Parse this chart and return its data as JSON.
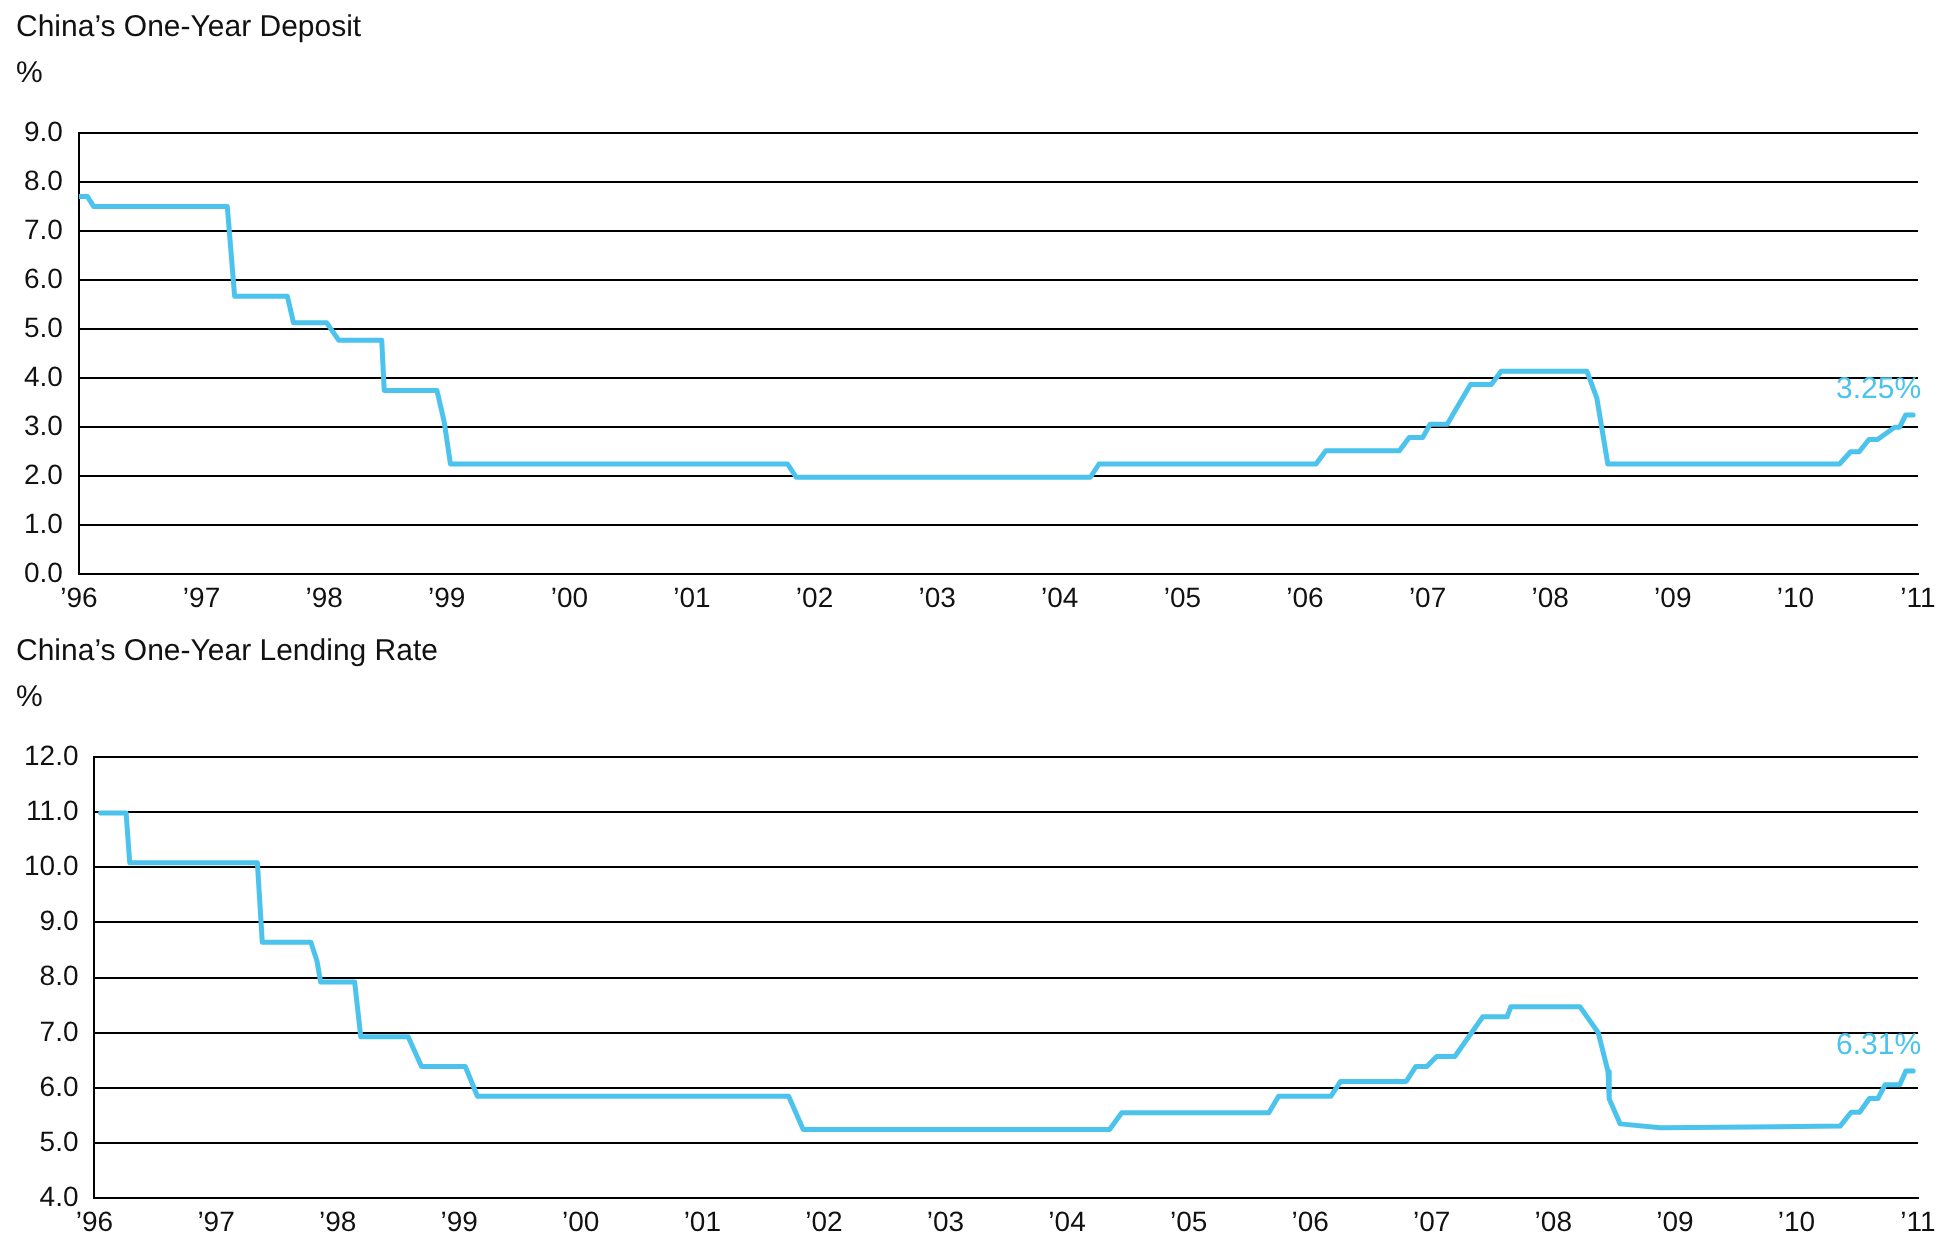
{
  "chart_data": [
    {
      "type": "line",
      "title": "China’s One-Year Deposit",
      "ylabel": "%",
      "color": "#4cc3ec",
      "x": [
        1996.0,
        1996.07,
        1996.12,
        1997.21,
        1997.27,
        1997.7,
        1997.75,
        1998.02,
        1998.12,
        1998.47,
        1998.49,
        1998.92,
        1998.98,
        1999.03,
        2001.78,
        2001.85,
        2004.25,
        2004.32,
        2006.09,
        2006.17,
        2006.77,
        2006.85,
        2006.96,
        2007.02,
        2007.16,
        2007.35,
        2007.52,
        2007.6,
        2008.3,
        2008.38,
        2008.47,
        2010.36,
        2010.45,
        2010.52,
        2010.6,
        2010.67,
        2010.81,
        2010.85,
        2010.9,
        2010.96
      ],
      "values": [
        7.7,
        7.7,
        7.5,
        7.5,
        5.67,
        5.67,
        5.13,
        5.13,
        4.77,
        4.77,
        3.75,
        3.75,
        3.1,
        2.25,
        2.25,
        1.98,
        1.98,
        2.25,
        2.25,
        2.52,
        2.52,
        2.79,
        2.79,
        3.06,
        3.06,
        3.87,
        3.87,
        4.14,
        4.14,
        3.6,
        2.25,
        2.25,
        2.5,
        2.5,
        2.75,
        2.75,
        3.0,
        3.0,
        3.25,
        3.25
      ],
      "xlim": [
        1996,
        2011
      ],
      "xticks": [
        {
          "value": 1996,
          "label": "’96"
        },
        {
          "value": 1997,
          "label": "’97"
        },
        {
          "value": 1998,
          "label": "’98"
        },
        {
          "value": 1999,
          "label": "’99"
        },
        {
          "value": 2000,
          "label": "’00"
        },
        {
          "value": 2001,
          "label": "’01"
        },
        {
          "value": 2002,
          "label": "’02"
        },
        {
          "value": 2003,
          "label": "’03"
        },
        {
          "value": 2004,
          "label": "’04"
        },
        {
          "value": 2005,
          "label": "’05"
        },
        {
          "value": 2006,
          "label": "’06"
        },
        {
          "value": 2007,
          "label": "’07"
        },
        {
          "value": 2008,
          "label": "’08"
        },
        {
          "value": 2009,
          "label": "’09"
        },
        {
          "value": 2010,
          "label": "’10"
        },
        {
          "value": 2011,
          "label": "’11"
        }
      ],
      "ylim": [
        0,
        9
      ],
      "yticks": [
        {
          "value": 0,
          "label": "0.0"
        },
        {
          "value": 1,
          "label": "1.0"
        },
        {
          "value": 2,
          "label": "2.0"
        },
        {
          "value": 3,
          "label": "3.0"
        },
        {
          "value": 4,
          "label": "4.0"
        },
        {
          "value": 5,
          "label": "5.0"
        },
        {
          "value": 6,
          "label": "6.0"
        },
        {
          "value": 7,
          "label": "7.0"
        },
        {
          "value": 8,
          "label": "8.0"
        },
        {
          "value": 9,
          "label": "9.0"
        }
      ],
      "annotations": [
        {
          "text": "3.25%",
          "x": 2010.96,
          "y": 3.25
        }
      ],
      "grid": "y",
      "legend": false,
      "marker": "none",
      "line_style": "solid"
    },
    {
      "type": "line",
      "title": "China’s One-Year Lending Rate",
      "ylabel": "%",
      "color": "#4cc3ec",
      "x": [
        1996.05,
        1996.26,
        1996.29,
        1997.34,
        1997.38,
        1997.78,
        1997.83,
        1997.86,
        1998.14,
        1998.19,
        1998.58,
        1998.69,
        1999.05,
        1999.15,
        2001.71,
        2001.83,
        2004.35,
        2004.45,
        2005.66,
        2005.74,
        2006.17,
        2006.25,
        2006.79,
        2006.87,
        2006.96,
        2007.04,
        2007.19,
        2007.42,
        2007.62,
        2007.65,
        2008.22,
        2008.37,
        2008.45,
        2008.46,
        2008.55,
        2008.88,
        2010.36,
        2010.45,
        2010.52,
        2010.6,
        2010.67,
        2010.73,
        2010.85,
        2010.9,
        2010.96
      ],
      "values": [
        10.98,
        10.98,
        10.08,
        10.08,
        8.64,
        8.64,
        8.3,
        7.92,
        7.92,
        6.93,
        6.93,
        6.39,
        6.39,
        5.85,
        5.85,
        5.25,
        5.25,
        5.55,
        5.55,
        5.85,
        5.85,
        6.12,
        6.12,
        6.39,
        6.39,
        6.57,
        6.57,
        7.29,
        7.29,
        7.47,
        7.47,
        7.0,
        6.3,
        5.8,
        5.35,
        5.28,
        5.31,
        5.56,
        5.56,
        5.81,
        5.81,
        6.06,
        6.06,
        6.31,
        6.31
      ],
      "xlim": [
        1996,
        2011
      ],
      "xticks": [
        {
          "value": 1996,
          "label": "’96"
        },
        {
          "value": 1997,
          "label": "’97"
        },
        {
          "value": 1998,
          "label": "’98"
        },
        {
          "value": 1999,
          "label": "’99"
        },
        {
          "value": 2000,
          "label": "’00"
        },
        {
          "value": 2001,
          "label": "’01"
        },
        {
          "value": 2002,
          "label": "’02"
        },
        {
          "value": 2003,
          "label": "’03"
        },
        {
          "value": 2004,
          "label": "’04"
        },
        {
          "value": 2005,
          "label": "’05"
        },
        {
          "value": 2006,
          "label": "’06"
        },
        {
          "value": 2007,
          "label": "’07"
        },
        {
          "value": 2008,
          "label": "’08"
        },
        {
          "value": 2009,
          "label": "’09"
        },
        {
          "value": 2010,
          "label": "’10"
        },
        {
          "value": 2011,
          "label": "’11"
        }
      ],
      "ylim": [
        4,
        12
      ],
      "yticks": [
        {
          "value": 4,
          "label": "4.0"
        },
        {
          "value": 5,
          "label": "5.0"
        },
        {
          "value": 6,
          "label": "6.0"
        },
        {
          "value": 7,
          "label": "7.0"
        },
        {
          "value": 8,
          "label": "8.0"
        },
        {
          "value": 9,
          "label": "9.0"
        },
        {
          "value": 10,
          "label": "10.0"
        },
        {
          "value": 11,
          "label": "11.0"
        },
        {
          "value": 12,
          "label": "12.0"
        }
      ],
      "annotations": [
        {
          "text": "6.31%",
          "x": 2010.96,
          "y": 6.31
        }
      ],
      "grid": "y",
      "legend": false,
      "marker": "none",
      "line_style": "solid"
    }
  ]
}
